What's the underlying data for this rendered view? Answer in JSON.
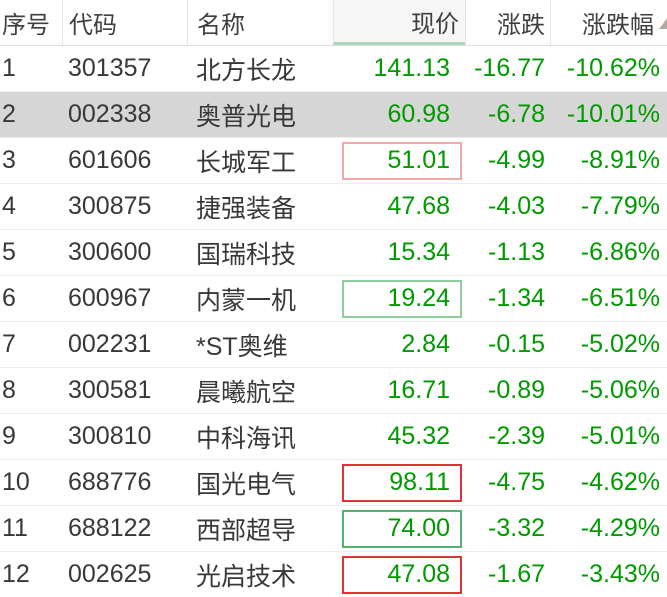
{
  "header": {
    "columns": [
      {
        "key": "index",
        "label": "序号"
      },
      {
        "key": "code",
        "label": "代码"
      },
      {
        "key": "name",
        "label": "名称"
      },
      {
        "key": "price",
        "label": "现价"
      },
      {
        "key": "change",
        "label": "涨跌"
      },
      {
        "key": "change_pct",
        "label": "涨跌幅"
      }
    ],
    "sort_icon": "triangle-up-icon"
  },
  "colors": {
    "green_text": "#009900",
    "dark_text": "#383838",
    "header_text": "#3f3f3f",
    "highlight_bg": "#d6d6d6",
    "price_header_underline": "#a7d9b4",
    "sort_icon": "#b4a8a4",
    "price_box": {
      "none": "transparent",
      "light-red": "#f0a9a9",
      "light-green": "#8ccf9c",
      "red": "#e03434",
      "green": "#52b371"
    }
  },
  "rows": [
    {
      "index": "1",
      "code": "301357",
      "name": "北方长龙",
      "price": "141.13",
      "change": "-16.77",
      "change_pct": "-10.62%",
      "price_box": "none",
      "highlighted": false
    },
    {
      "index": "2",
      "code": "002338",
      "name": "奥普光电",
      "price": "60.98",
      "change": "-6.78",
      "change_pct": "-10.01%",
      "price_box": "none",
      "highlighted": true
    },
    {
      "index": "3",
      "code": "601606",
      "name": "长城军工",
      "price": "51.01",
      "change": "-4.99",
      "change_pct": "-8.91%",
      "price_box": "light-red",
      "highlighted": false
    },
    {
      "index": "4",
      "code": "300875",
      "name": "捷强装备",
      "price": "47.68",
      "change": "-4.03",
      "change_pct": "-7.79%",
      "price_box": "none",
      "highlighted": false
    },
    {
      "index": "5",
      "code": "300600",
      "name": "国瑞科技",
      "price": "15.34",
      "change": "-1.13",
      "change_pct": "-6.86%",
      "price_box": "none",
      "highlighted": false
    },
    {
      "index": "6",
      "code": "600967",
      "name": "内蒙一机",
      "price": "19.24",
      "change": "-1.34",
      "change_pct": "-6.51%",
      "price_box": "light-green",
      "highlighted": false
    },
    {
      "index": "7",
      "code": "002231",
      "name": "*ST奥维",
      "price": "2.84",
      "change": "-0.15",
      "change_pct": "-5.02%",
      "price_box": "none",
      "highlighted": false
    },
    {
      "index": "8",
      "code": "300581",
      "name": "晨曦航空",
      "price": "16.71",
      "change": "-0.89",
      "change_pct": "-5.06%",
      "price_box": "none",
      "highlighted": false
    },
    {
      "index": "9",
      "code": "300810",
      "name": "中科海讯",
      "price": "45.32",
      "change": "-2.39",
      "change_pct": "-5.01%",
      "price_box": "none",
      "highlighted": false
    },
    {
      "index": "10",
      "code": "688776",
      "name": "国光电气",
      "price": "98.11",
      "change": "-4.75",
      "change_pct": "-4.62%",
      "price_box": "red",
      "highlighted": false
    },
    {
      "index": "11",
      "code": "688122",
      "name": "西部超导",
      "price": "74.00",
      "change": "-3.32",
      "change_pct": "-4.29%",
      "price_box": "green",
      "highlighted": false
    },
    {
      "index": "12",
      "code": "002625",
      "name": "光启技术",
      "price": "47.08",
      "change": "-1.67",
      "change_pct": "-3.43%",
      "price_box": "red",
      "highlighted": false
    }
  ]
}
